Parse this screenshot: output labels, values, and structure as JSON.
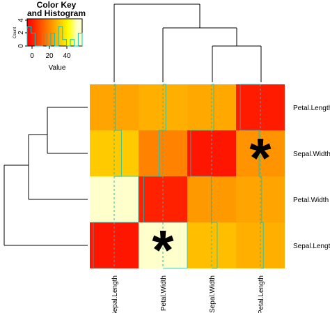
{
  "color_key": {
    "title_line1": "Color Key",
    "title_line2": "and Histogram",
    "ylabel": "Count",
    "xlabel": "Value",
    "x_ticks": [
      "0",
      "20",
      "40"
    ],
    "y_ticks": [
      "0",
      "2",
      "4"
    ]
  },
  "chart_data": {
    "type": "heatmap",
    "title": "",
    "rows": [
      "Petal.Length",
      "Sepal.Width",
      "Petal.Width",
      "Sepal.Length"
    ],
    "columns": [
      "Sepal.Length",
      "Petal.Width",
      "Sepal.Width",
      "Petal.Length"
    ],
    "values": [
      [
        30,
        32,
        31,
        5
      ],
      [
        37,
        24,
        4,
        27
      ],
      [
        57,
        6,
        28,
        30
      ],
      [
        4,
        57,
        35,
        32
      ]
    ],
    "value_range": [
      0,
      57
    ],
    "colormap": [
      "#ff0000",
      "#ffff00",
      "#ffffcc"
    ],
    "annotations": [
      {
        "row": "Sepal.Width",
        "column": "Petal.Length",
        "text": "*"
      },
      {
        "row": "Sepal.Length",
        "column": "Petal.Width",
        "text": "*"
      }
    ],
    "key_histogram_counts": [
      3,
      2,
      0,
      0,
      2,
      0,
      2,
      0,
      3,
      1,
      0,
      1,
      0,
      2
    ],
    "colors": {
      "trace_line": "#00c8c8",
      "grid_border": "#555555"
    }
  }
}
